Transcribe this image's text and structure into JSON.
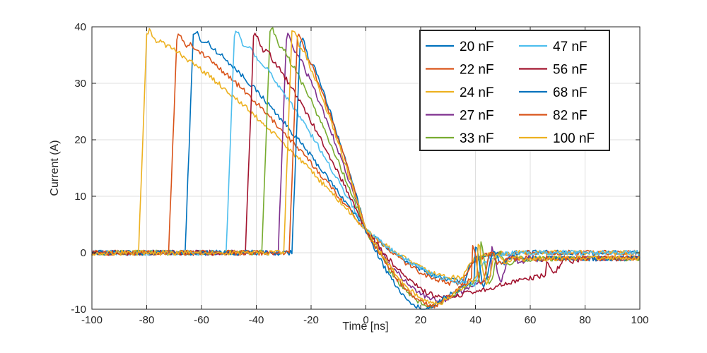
{
  "chart_data": {
    "type": "line",
    "title": "",
    "xlabel": "Time [ns]",
    "ylabel": "Current (A)",
    "xlim": [
      -100,
      100
    ],
    "ylim": [
      -10,
      40
    ],
    "xticks": [
      -100,
      -80,
      -60,
      -40,
      -20,
      0,
      20,
      40,
      60,
      80,
      100
    ],
    "yticks": [
      -10,
      0,
      10,
      20,
      30,
      40
    ],
    "xtick_labels": [
      "-100",
      "-80",
      "-60",
      "-40",
      "-20",
      "0",
      "20",
      "40",
      "60",
      "80",
      "100"
    ],
    "ytick_labels": [
      "-10",
      "0",
      "10",
      "20",
      "30",
      "40"
    ],
    "grid": true,
    "legend_position": "top-right",
    "series": [
      {
        "name": "20 nF",
        "color": "#0072BD",
        "t0": -66,
        "peak": 38.5,
        "rise": 3,
        "min": -5.0,
        "tmin": 36,
        "ring_t": 38,
        "ring_amp": 0.0,
        "tail": 0
      },
      {
        "name": "22 nF",
        "color": "#D95319",
        "t0": -72,
        "peak": 38.0,
        "rise": 3,
        "min": -5.5,
        "tmin": 35,
        "ring_t": 38,
        "ring_amp": 0.0,
        "tail": 0
      },
      {
        "name": "24 nF",
        "color": "#EDB120",
        "t0": -83,
        "peak": 38.5,
        "rise": 3,
        "min": -4.5,
        "tmin": 35,
        "ring_t": 38,
        "ring_amp": 0.0,
        "tail": 0
      },
      {
        "name": "27 nF",
        "color": "#7E2F8E",
        "t0": -32,
        "peak": 38.0,
        "rise": 3,
        "min": -8.5,
        "tmin": 28,
        "ring_t": 46,
        "ring_amp": 5.0,
        "tail": -1
      },
      {
        "name": "33 nF",
        "color": "#77AC30",
        "t0": -38,
        "peak": 39.0,
        "rise": 3,
        "min": -9.5,
        "tmin": 25,
        "ring_t": 42,
        "ring_amp": 6.0,
        "tail": -1
      },
      {
        "name": "47 nF",
        "color": "#4DBEEE",
        "t0": -51,
        "peak": 38.5,
        "rise": 3,
        "min": -5.5,
        "tmin": 40,
        "ring_t": 42,
        "ring_amp": 0.0,
        "tail": 0
      },
      {
        "name": "56 nF",
        "color": "#A2142F",
        "t0": -44,
        "peak": 38.0,
        "rise": 3,
        "min": -8.0,
        "tmin": 30,
        "ring_t": 66,
        "ring_amp": 2.0,
        "tail": -1
      },
      {
        "name": "68 nF",
        "color": "#0072BD",
        "t0": -27,
        "peak": 37.5,
        "rise": 3,
        "min": -10.0,
        "tmin": 22,
        "ring_t": 40,
        "ring_amp": 6.0,
        "tail": -1
      },
      {
        "name": "82 nF",
        "color": "#D95319",
        "t0": -28,
        "peak": 38.0,
        "rise": 3,
        "min": -9.5,
        "tmin": 26,
        "ring_t": 39,
        "ring_amp": 6.0,
        "tail": -1
      },
      {
        "name": "100 nF",
        "color": "#EDB120",
        "t0": -30,
        "peak": 39.0,
        "rise": 3,
        "min": -9.0,
        "tmin": 27,
        "ring_t": 41,
        "ring_amp": 6.0,
        "tail": -1
      }
    ]
  }
}
